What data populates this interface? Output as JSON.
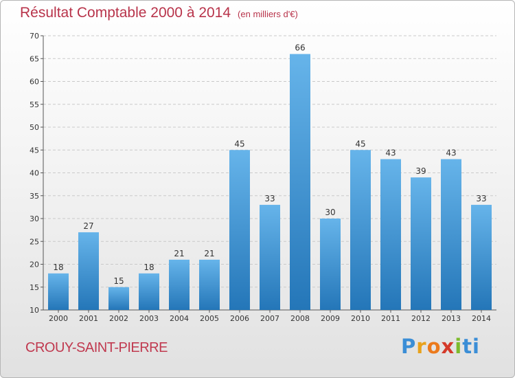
{
  "header": {
    "title": "Résultat Comptable 2000 à 2014",
    "unit": "(en milliers d'€)"
  },
  "footer": {
    "city": "CROUY-SAINT-PIERRE",
    "logo": "Proxiti",
    "logo_letters": [
      "P",
      "r",
      "o",
      "x",
      "i",
      "ti"
    ]
  },
  "colors": {
    "bar_top": "#66b4ea",
    "bar_bottom": "#2476b8",
    "title": "#b8334a",
    "grid": "#c9c9c9"
  },
  "chart_data": {
    "type": "bar",
    "title": "Résultat Comptable 2000 à 2014",
    "subtitle": "(en milliers d'€)",
    "xlabel": "",
    "ylabel": "",
    "categories": [
      "2000",
      "2001",
      "2002",
      "2003",
      "2004",
      "2005",
      "2006",
      "2007",
      "2008",
      "2009",
      "2010",
      "2011",
      "2012",
      "2013",
      "2014"
    ],
    "values": [
      18,
      27,
      15,
      18,
      21,
      21,
      45,
      33,
      66,
      30,
      45,
      43,
      39,
      43,
      33
    ],
    "ylim": [
      10,
      70
    ],
    "yticks": [
      10,
      15,
      20,
      25,
      30,
      35,
      40,
      45,
      50,
      55,
      60,
      65,
      70
    ],
    "grid": true,
    "grid_style": "dashed horizontal"
  }
}
